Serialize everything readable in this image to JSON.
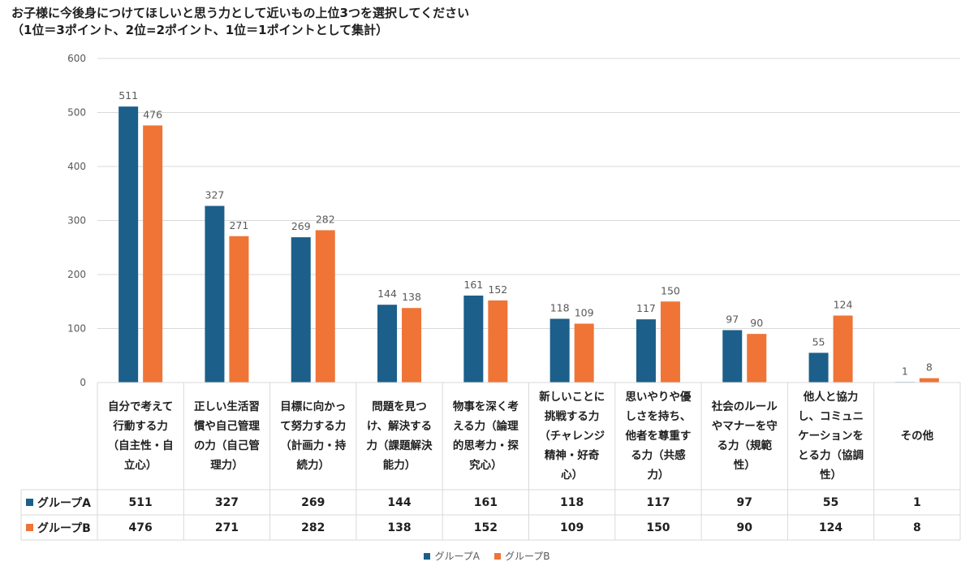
{
  "title_line1": "お子様に今後身につけてほしいと思う力として近いもの上位3つを選択してください",
  "title_line2": "（1位＝3ポイント、2位=2ポイント、1位＝1ポイントとして集計）",
  "colors": {
    "series_a": "#1b5f8a",
    "series_b": "#ef7436",
    "grid": "#d9d9d9",
    "text": "#595959"
  },
  "chart_data": {
    "type": "bar",
    "ylim": [
      0,
      600
    ],
    "yticks": [
      "0",
      "100",
      "200",
      "300",
      "400",
      "500",
      "600"
    ],
    "categories": [
      [
        "自分で考えて",
        "行動する力",
        "（自主性・自",
        "立心）"
      ],
      [
        "正しい生活習",
        "慣や自己管理",
        "の力（自己管",
        "理力）"
      ],
      [
        "目標に向かっ",
        "て努力する力",
        "（計画力・持",
        "続力）"
      ],
      [
        "問題を見つ",
        "け、解決する",
        "力（課題解決",
        "能力）"
      ],
      [
        "物事を深く考",
        "える力（論理",
        "的思考力・探",
        "究心）"
      ],
      [
        "新しいことに",
        "挑戦する力",
        "（チャレンジ",
        "精神・好奇",
        "心）"
      ],
      [
        "思いやりや優",
        "しさを持ち、",
        "他者を尊重す",
        "る力（共感",
        "力）"
      ],
      [
        "社会のルール",
        "やマナーを守",
        "る力（規範",
        "性）"
      ],
      [
        "他人と協力",
        "し、コミュニ",
        "ケーションを",
        "とる力（協調",
        "性）"
      ],
      [
        "その他"
      ]
    ],
    "series": [
      {
        "name": "グループA",
        "values": [
          511,
          327,
          269,
          144,
          161,
          118,
          117,
          97,
          55,
          1
        ]
      },
      {
        "name": "グループB",
        "values": [
          476,
          271,
          282,
          138,
          152,
          109,
          150,
          90,
          124,
          8
        ]
      }
    ],
    "legend_position": "bottom"
  }
}
